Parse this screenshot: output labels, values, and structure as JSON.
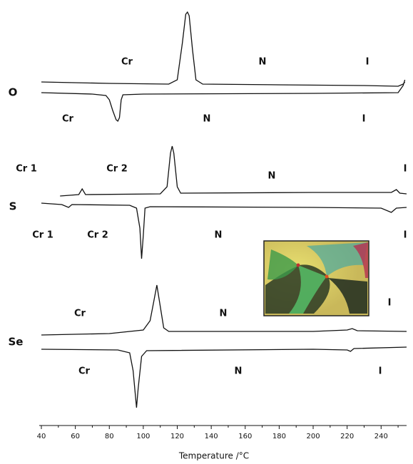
{
  "chart_data": {
    "type": "line",
    "x_label": "Temperature /°C",
    "xlim": [
      40,
      255
    ],
    "xticks": [
      40,
      60,
      80,
      100,
      120,
      140,
      160,
      180,
      200,
      220,
      240
    ],
    "xticks_minor": [
      50,
      70,
      90,
      110,
      130,
      150,
      170,
      190,
      210,
      230,
      250
    ],
    "ylim": [
      0,
      590
    ],
    "compounds": [
      "O",
      "S",
      "Se"
    ],
    "annotations": [
      "Cr",
      "N",
      "I",
      "Cr",
      "N",
      "I",
      "Cr 1",
      "Cr 2",
      "N",
      "I",
      "Cr 1",
      "Cr 2",
      "N",
      "I",
      "Cr",
      "N",
      "I",
      "Cr",
      "N",
      "I"
    ],
    "series": [
      {
        "color": "#111111",
        "x": [
          40,
          80,
          115,
          120,
          123,
          125,
          126,
          127,
          129,
          131,
          135,
          180,
          230,
          250,
          253,
          254
        ],
        "values": [
          482,
          480,
          479,
          485,
          537,
          577,
          580,
          575,
          527,
          485,
          479,
          478,
          477,
          476,
          479,
          482
        ]
      },
      {
        "color": "#111111",
        "x": [
          40,
          70,
          78,
          80,
          82,
          84,
          85,
          86,
          87,
          88,
          100,
          200,
          250,
          253,
          254
        ],
        "values": [
          467,
          465,
          463,
          457,
          442,
          429,
          427,
          432,
          457,
          464,
          465,
          466,
          467,
          477,
          485
        ]
      },
      {
        "color": "#111111",
        "x": [
          51,
          62,
          64,
          66,
          110,
          114,
          116,
          117,
          118,
          120,
          122,
          200,
          246,
          249,
          251,
          255
        ],
        "values": [
          322,
          324,
          332,
          324,
          325,
          335,
          382,
          392,
          382,
          335,
          326,
          327,
          327,
          331,
          326,
          325
        ]
      },
      {
        "color": "#111111",
        "x": [
          40,
          52,
          56,
          58,
          92,
          96,
          98,
          99,
          100,
          101,
          104,
          200,
          240,
          246,
          249,
          255
        ],
        "values": [
          312,
          310,
          306,
          310,
          309,
          305,
          277,
          234,
          267,
          305,
          307,
          306,
          305,
          299,
          305,
          306
        ]
      },
      {
        "color": "#111111",
        "x": [
          40,
          80,
          100,
          104,
          106,
          108,
          110,
          112,
          115,
          200,
          220,
          223,
          226,
          255
        ],
        "values": [
          127,
          129,
          134,
          147,
          172,
          197,
          167,
          137,
          132,
          132,
          134,
          136,
          133,
          132
        ]
      },
      {
        "color": "#111111",
        "x": [
          40,
          85,
          92,
          94,
          96,
          97,
          99,
          102,
          200,
          220,
          222,
          224,
          255
        ],
        "values": [
          107,
          106,
          102,
          77,
          25,
          52,
          97,
          105,
          107,
          106,
          104,
          108,
          110
        ]
      }
    ]
  }
}
